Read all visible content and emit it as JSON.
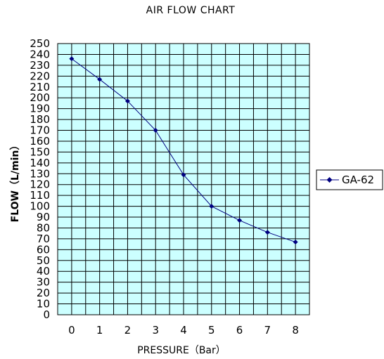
{
  "chart_data": {
    "type": "line",
    "title": "AIR FLOW CHART",
    "xlabel": "PRESSURE（Bar）",
    "ylabel": "FLOW（L/min）",
    "xlim": [
      0,
      8
    ],
    "ylim": [
      0,
      250
    ],
    "x_ticks": [
      "0",
      "1",
      "2",
      "3",
      "4",
      "5",
      "6",
      "7",
      "8"
    ],
    "y_ticks": [
      "0",
      "10",
      "20",
      "30",
      "40",
      "50",
      "60",
      "70",
      "80",
      "90",
      "100",
      "110",
      "120",
      "130",
      "140",
      "150",
      "160",
      "170",
      "180",
      "190",
      "200",
      "210",
      "220",
      "230",
      "240",
      "250"
    ],
    "grid": true,
    "legend_position": "right",
    "series": [
      {
        "name": "GA-62",
        "x": [
          0,
          1,
          2,
          3,
          4,
          5,
          6,
          7,
          8
        ],
        "values": [
          236,
          217,
          197,
          170,
          129,
          100,
          87,
          76,
          67
        ]
      }
    ],
    "colors": {
      "plot_background": "#ccffff",
      "grid": "#000000",
      "line": "#000080",
      "marker": "#000080"
    }
  }
}
